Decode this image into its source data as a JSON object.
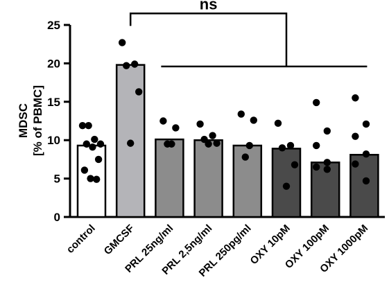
{
  "chart_data": {
    "type": "bar",
    "ylabel_line1": "MDSC",
    "ylabel_line2": "[% of PBMC]",
    "ylim": [
      0,
      25
    ],
    "yticks": [
      0,
      5,
      10,
      15,
      20,
      25
    ],
    "categories": [
      "control",
      "GMCSF",
      "PRL 25ng/ml",
      "PRL 2,5ng/ml",
      "PRL 250pg/ml",
      "OXY 10pM",
      "OXY 100pM",
      "OXY 1000pM"
    ],
    "values": [
      9.3,
      19.8,
      10.1,
      10.0,
      9.3,
      8.9,
      7.1,
      8.1
    ],
    "bar_colors": [
      "#ffffff",
      "#b4b4b8",
      "#8c8c8c",
      "#8c8c8c",
      "#8c8c8c",
      "#4a4a4a",
      "#4a4a4a",
      "#4a4a4a"
    ],
    "points": [
      [
        11.9,
        11.9,
        10.1,
        9.5,
        9.5,
        9.1,
        7.5,
        6.1,
        5.0,
        4.9
      ],
      [
        22.7,
        19.9,
        19.7,
        16.3,
        9.6
      ],
      [
        12.5,
        11.6,
        9.5,
        9.5
      ],
      [
        12.1,
        10.6,
        10.1,
        9.6,
        9.5
      ],
      [
        13.4,
        12.6,
        9.3,
        7.8
      ],
      [
        12.2,
        9.3,
        9.0,
        6.8,
        4.0
      ],
      [
        14.9,
        11.2,
        9.3,
        7.1,
        6.5,
        6.2
      ],
      [
        15.5,
        12.1,
        10.5,
        8.2,
        6.9,
        4.7
      ]
    ],
    "annotation": {
      "text": "ns",
      "bracket_from": "GMCSF",
      "bracket_to": "OXY 10pM",
      "line_start": "PRL 25ng/ml",
      "line_end": "OXY 1000pM",
      "bracket_level": 26.5,
      "line_level": 19.6
    }
  }
}
